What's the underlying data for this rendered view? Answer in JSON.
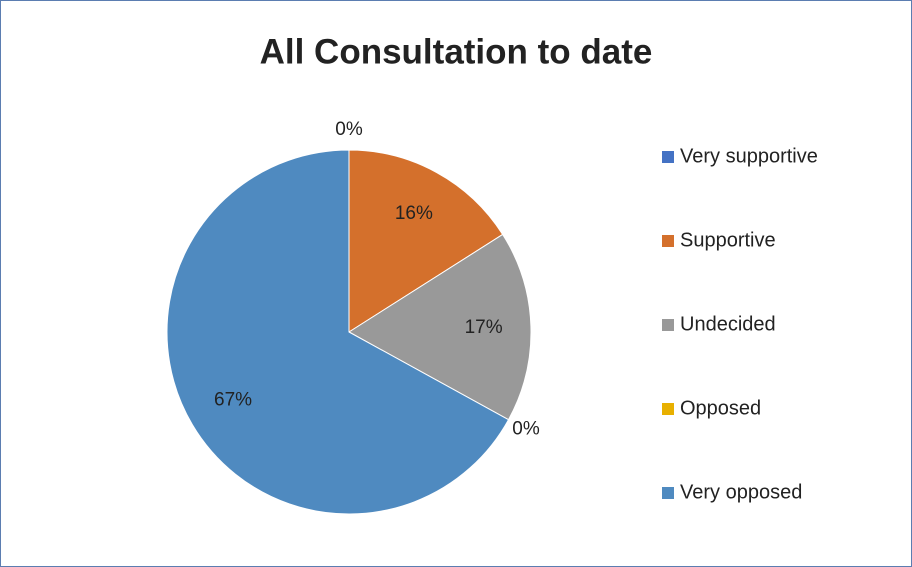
{
  "chart_data": {
    "type": "pie",
    "title": "All Consultation to date",
    "categories": [
      "Very supportive",
      "Supportive",
      "Undecided",
      "Opposed",
      "Very opposed"
    ],
    "values": [
      0,
      16,
      17,
      0,
      67
    ],
    "value_labels": [
      "0%",
      "16%",
      "17%",
      "0%",
      "67%"
    ],
    "colors": [
      "#4472c4",
      "#d4702c",
      "#999999",
      "#e8b000",
      "#4f8ac0"
    ],
    "legend": "right"
  }
}
